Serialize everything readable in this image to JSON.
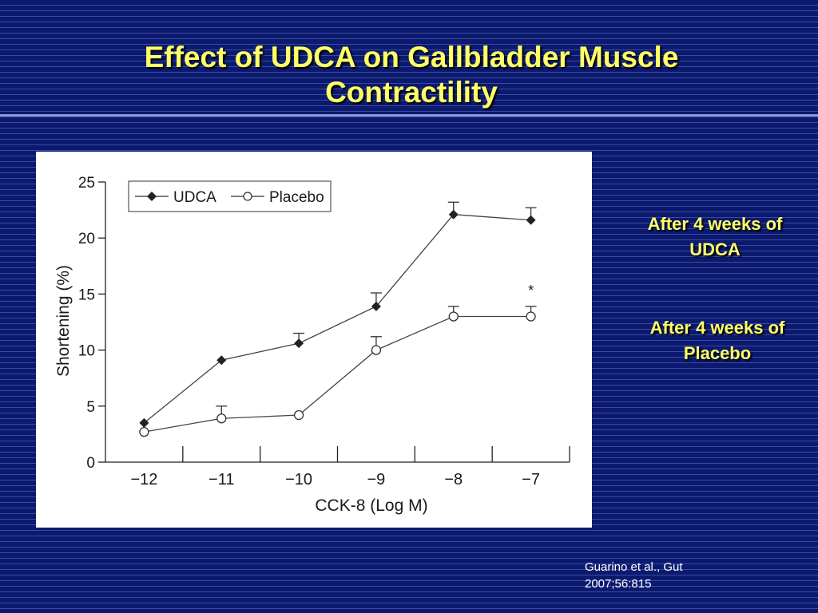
{
  "slide": {
    "title_line1": "Effect of UDCA on Gallbladder Muscle",
    "title_line2": "Contractility",
    "note_udca_line1": "After 4 weeks of",
    "note_udca_line2": "UDCA",
    "note_placebo_line1": "After 4 weeks of",
    "note_placebo_line2": "Placebo",
    "citation_line1": "Guarino et al., Gut",
    "citation_line2": "2007;56:815",
    "colors": {
      "background": "#0b1a6e",
      "title": "#ffff66",
      "notes": "#ffff66",
      "citation": "#ffffff"
    }
  },
  "chart_data": {
    "type": "line",
    "xlabel": "CCK-8 (Log M)",
    "ylabel": "Shortening (%)",
    "categories": [
      "−12",
      "−11",
      "−10",
      "−9",
      "−8",
      "−7"
    ],
    "x": [
      -12,
      -11,
      -10,
      -9,
      -8,
      -7
    ],
    "ylim": [
      0,
      25
    ],
    "yticks": [
      0,
      5,
      10,
      15,
      20,
      25
    ],
    "grid": false,
    "legend_position": "top-left",
    "series": [
      {
        "name": "UDCA",
        "marker": "filled-diamond",
        "values": [
          3.5,
          9.1,
          10.6,
          13.9,
          22.1,
          21.6
        ],
        "error_up": [
          0,
          0,
          0.9,
          1.2,
          1.1,
          1.1
        ]
      },
      {
        "name": "Placebo",
        "marker": "open-circle",
        "values": [
          2.7,
          3.9,
          4.2,
          10.0,
          13.0,
          13.0
        ],
        "error_up": [
          0,
          1.1,
          0,
          1.2,
          0.9,
          0.9
        ]
      }
    ],
    "annotations": [
      {
        "x": -7,
        "y": 15.3,
        "text": "*"
      }
    ]
  }
}
